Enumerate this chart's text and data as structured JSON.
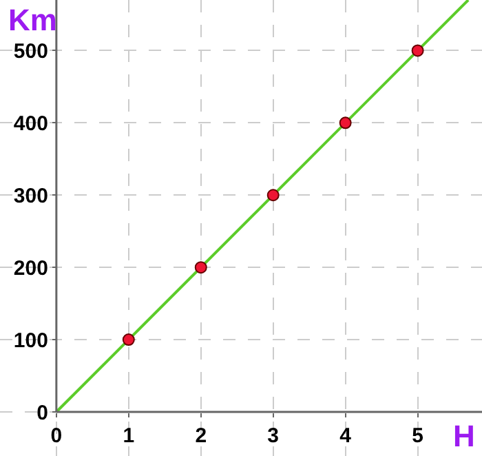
{
  "chart_data": {
    "type": "line",
    "xlabel": "H",
    "ylabel": "Km",
    "xlim": [
      -0.78,
      5.89
    ],
    "ylim": [
      -61,
      570
    ],
    "xticks": [
      0,
      1,
      2,
      3,
      4,
      5
    ],
    "yticks": [
      0,
      100,
      200,
      300,
      400,
      500
    ],
    "grid": true,
    "marker": "circle",
    "series": [
      {
        "color": "#5ccc2a",
        "x": [
          0,
          5.7
        ],
        "values": [
          0,
          570
        ],
        "marker": "none",
        "line_style": "solid"
      },
      {
        "type": "scatter",
        "color": "#ee1533",
        "x": [
          1,
          2,
          3,
          4,
          5
        ],
        "values": [
          100,
          200,
          300,
          400,
          500
        ]
      }
    ]
  }
}
